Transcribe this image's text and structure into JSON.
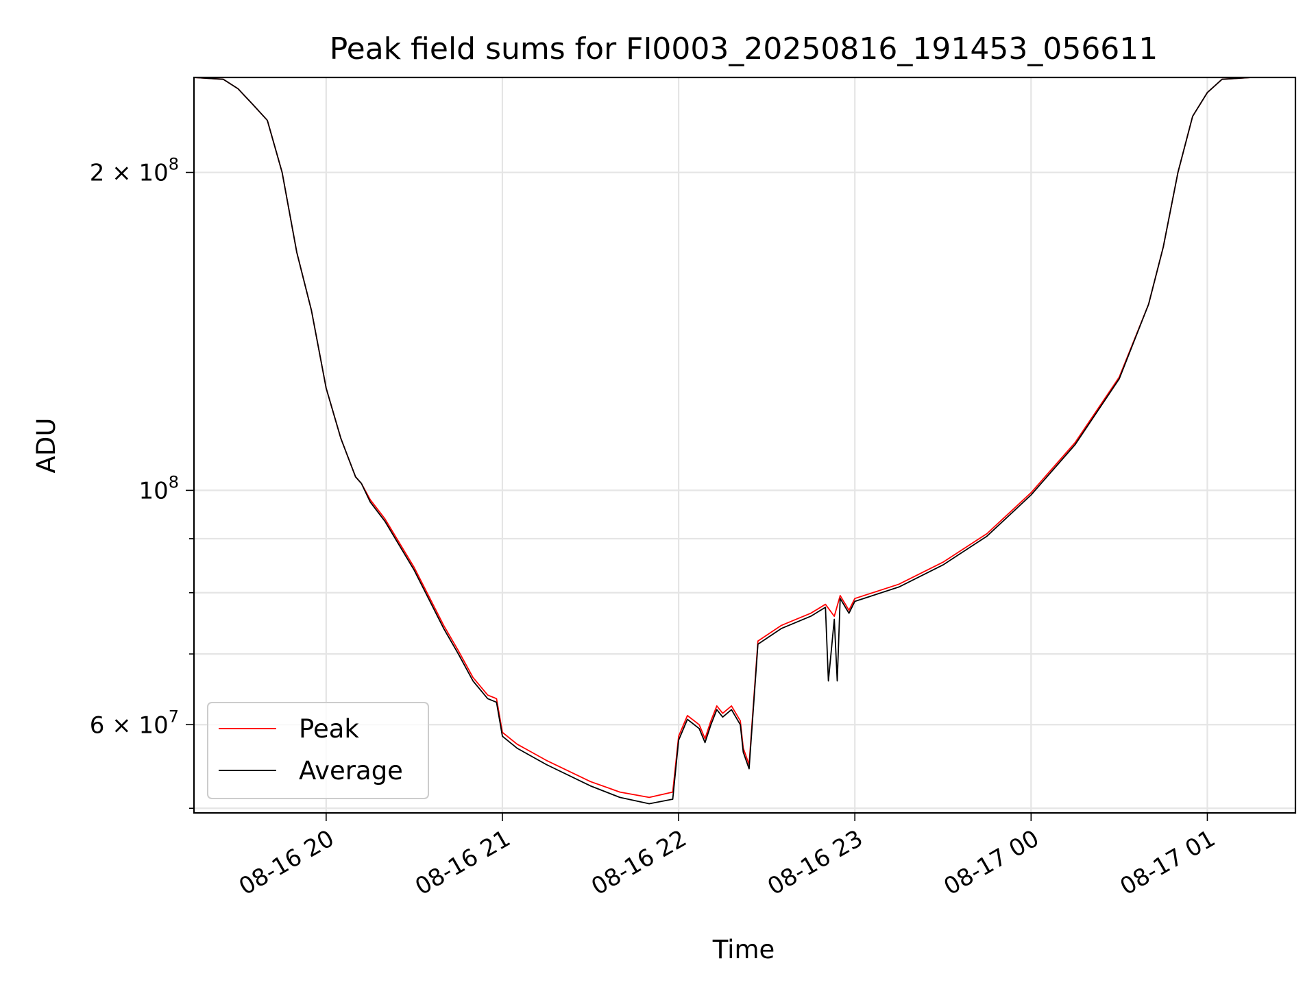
{
  "chart_data": {
    "type": "line",
    "title": "Peak field sums for FI0003_20250816_191453_056611",
    "xlabel": "Time",
    "ylabel": "ADU",
    "yscale": "log",
    "xlim": [
      "2025-08-16 19:15",
      "2025-08-17 01:30"
    ],
    "ylim": [
      49500000,
      246000000
    ],
    "xticks": [
      {
        "t": "2025-08-16 20:00",
        "label": "08-16 20"
      },
      {
        "t": "2025-08-16 21:00",
        "label": "08-16 21"
      },
      {
        "t": "2025-08-16 22:00",
        "label": "08-16 22"
      },
      {
        "t": "2025-08-16 23:00",
        "label": "08-16 23"
      },
      {
        "t": "2025-08-17 00:00",
        "label": "08-17 00"
      },
      {
        "t": "2025-08-17 01:00",
        "label": "08-17 01"
      }
    ],
    "yticks_major": [
      {
        "v": 200000000,
        "base": "2 × 10",
        "exp": "8"
      },
      {
        "v": 100000000,
        "base": "10",
        "exp": "8"
      },
      {
        "v": 60000000,
        "base": "6 × 10",
        "exp": "7"
      }
    ],
    "yticks_minor": [
      50000000,
      70000000,
      80000000,
      90000000
    ],
    "grid": true,
    "legend_position": "lower-left",
    "series": [
      {
        "name": "Peak",
        "color": "#ff0000",
        "points": [
          [
            "2025-08-16 19:15",
            246000000
          ],
          [
            "2025-08-16 19:25",
            245000000
          ],
          [
            "2025-08-16 19:30",
            240000000
          ],
          [
            "2025-08-16 19:35",
            232000000
          ],
          [
            "2025-08-16 19:40",
            224000000
          ],
          [
            "2025-08-16 19:45",
            200000000
          ],
          [
            "2025-08-16 19:50",
            168000000
          ],
          [
            "2025-08-16 19:55",
            148000000
          ],
          [
            "2025-08-16 20:00",
            125000000
          ],
          [
            "2025-08-16 20:05",
            112000000
          ],
          [
            "2025-08-16 20:10",
            103000000
          ],
          [
            "2025-08-16 20:12",
            101500000
          ],
          [
            "2025-08-16 20:15",
            98000000
          ],
          [
            "2025-08-16 20:20",
            94000000
          ],
          [
            "2025-08-16 20:30",
            84500000
          ],
          [
            "2025-08-16 20:40",
            74500000
          ],
          [
            "2025-08-16 20:45",
            70500000
          ],
          [
            "2025-08-16 20:50",
            66500000
          ],
          [
            "2025-08-16 20:55",
            64000000
          ],
          [
            "2025-08-16 20:58",
            63500000
          ],
          [
            "2025-08-16 21:00",
            59000000
          ],
          [
            "2025-08-16 21:05",
            57500000
          ],
          [
            "2025-08-16 21:15",
            55500000
          ],
          [
            "2025-08-16 21:30",
            53000000
          ],
          [
            "2025-08-16 21:40",
            51800000
          ],
          [
            "2025-08-16 21:50",
            51200000
          ],
          [
            "2025-08-16 21:58",
            51800000
          ],
          [
            "2025-08-16 22:00",
            58500000
          ],
          [
            "2025-08-16 22:03",
            61200000
          ],
          [
            "2025-08-16 22:07",
            60000000
          ],
          [
            "2025-08-16 22:09",
            58200000
          ],
          [
            "2025-08-16 22:11",
            60500000
          ],
          [
            "2025-08-16 22:13",
            62500000
          ],
          [
            "2025-08-16 22:15",
            61500000
          ],
          [
            "2025-08-16 22:18",
            62500000
          ],
          [
            "2025-08-16 22:21",
            60500000
          ],
          [
            "2025-08-16 22:22",
            57000000
          ],
          [
            "2025-08-16 22:24",
            55000000
          ],
          [
            "2025-08-16 22:27",
            72000000
          ],
          [
            "2025-08-16 22:35",
            74500000
          ],
          [
            "2025-08-16 22:45",
            76500000
          ],
          [
            "2025-08-16 22:50",
            78000000
          ],
          [
            "2025-08-16 22:53",
            76000000
          ],
          [
            "2025-08-16 22:55",
            79500000
          ],
          [
            "2025-08-16 22:58",
            77000000
          ],
          [
            "2025-08-16 23:00",
            79000000
          ],
          [
            "2025-08-16 23:15",
            81500000
          ],
          [
            "2025-08-16 23:30",
            85500000
          ],
          [
            "2025-08-16 23:45",
            91000000
          ],
          [
            "2025-08-17 00:00",
            99500000
          ],
          [
            "2025-08-17 00:15",
            111000000
          ],
          [
            "2025-08-17 00:30",
            128000000
          ],
          [
            "2025-08-17 00:40",
            150000000
          ],
          [
            "2025-08-17 00:45",
            170000000
          ],
          [
            "2025-08-17 00:50",
            200000000
          ],
          [
            "2025-08-17 00:55",
            226000000
          ],
          [
            "2025-08-17 01:00",
            238000000
          ],
          [
            "2025-08-17 01:05",
            245000000
          ],
          [
            "2025-08-17 01:15",
            246000000
          ],
          [
            "2025-08-17 01:30",
            246000000
          ]
        ]
      },
      {
        "name": "Average",
        "color": "#000000",
        "points": [
          [
            "2025-08-16 19:15",
            246000000
          ],
          [
            "2025-08-16 19:25",
            245000000
          ],
          [
            "2025-08-16 19:30",
            240000000
          ],
          [
            "2025-08-16 19:35",
            232000000
          ],
          [
            "2025-08-16 19:40",
            224000000
          ],
          [
            "2025-08-16 19:45",
            200000000
          ],
          [
            "2025-08-16 19:50",
            168000000
          ],
          [
            "2025-08-16 19:55",
            148000000
          ],
          [
            "2025-08-16 20:00",
            125000000
          ],
          [
            "2025-08-16 20:05",
            112000000
          ],
          [
            "2025-08-16 20:10",
            103000000
          ],
          [
            "2025-08-16 20:12",
            101500000
          ],
          [
            "2025-08-16 20:15",
            97500000
          ],
          [
            "2025-08-16 20:20",
            93500000
          ],
          [
            "2025-08-16 20:30",
            84000000
          ],
          [
            "2025-08-16 20:40",
            74000000
          ],
          [
            "2025-08-16 20:45",
            70000000
          ],
          [
            "2025-08-16 20:50",
            66000000
          ],
          [
            "2025-08-16 20:55",
            63500000
          ],
          [
            "2025-08-16 20:58",
            63000000
          ],
          [
            "2025-08-16 21:00",
            58500000
          ],
          [
            "2025-08-16 21:05",
            57000000
          ],
          [
            "2025-08-16 21:15",
            55000000
          ],
          [
            "2025-08-16 21:30",
            52500000
          ],
          [
            "2025-08-16 21:40",
            51200000
          ],
          [
            "2025-08-16 21:50",
            50500000
          ],
          [
            "2025-08-16 21:58",
            51000000
          ],
          [
            "2025-08-16 22:00",
            58000000
          ],
          [
            "2025-08-16 22:03",
            60700000
          ],
          [
            "2025-08-16 22:07",
            59500000
          ],
          [
            "2025-08-16 22:09",
            57700000
          ],
          [
            "2025-08-16 22:11",
            60000000
          ],
          [
            "2025-08-16 22:13",
            62000000
          ],
          [
            "2025-08-16 22:15",
            61000000
          ],
          [
            "2025-08-16 22:18",
            62000000
          ],
          [
            "2025-08-16 22:21",
            60000000
          ],
          [
            "2025-08-16 22:22",
            56500000
          ],
          [
            "2025-08-16 22:24",
            54500000
          ],
          [
            "2025-08-16 22:27",
            71500000
          ],
          [
            "2025-08-16 22:35",
            74000000
          ],
          [
            "2025-08-16 22:45",
            76000000
          ],
          [
            "2025-08-16 22:50",
            77500000
          ],
          [
            "2025-08-16 22:51",
            66000000
          ],
          [
            "2025-08-16 22:53",
            75500000
          ],
          [
            "2025-08-16 22:54",
            66000000
          ],
          [
            "2025-08-16 22:55",
            79000000
          ],
          [
            "2025-08-16 22:58",
            76500000
          ],
          [
            "2025-08-16 23:00",
            78500000
          ],
          [
            "2025-08-16 23:15",
            81000000
          ],
          [
            "2025-08-16 23:30",
            85000000
          ],
          [
            "2025-08-16 23:45",
            90500000
          ],
          [
            "2025-08-17 00:00",
            99000000
          ],
          [
            "2025-08-17 00:15",
            110500000
          ],
          [
            "2025-08-17 00:30",
            127500000
          ],
          [
            "2025-08-17 00:40",
            150000000
          ],
          [
            "2025-08-17 00:45",
            170000000
          ],
          [
            "2025-08-17 00:50",
            200000000
          ],
          [
            "2025-08-17 00:55",
            226000000
          ],
          [
            "2025-08-17 01:00",
            238000000
          ],
          [
            "2025-08-17 01:05",
            245000000
          ],
          [
            "2025-08-17 01:15",
            246000000
          ],
          [
            "2025-08-17 01:30",
            246000000
          ]
        ]
      }
    ]
  }
}
